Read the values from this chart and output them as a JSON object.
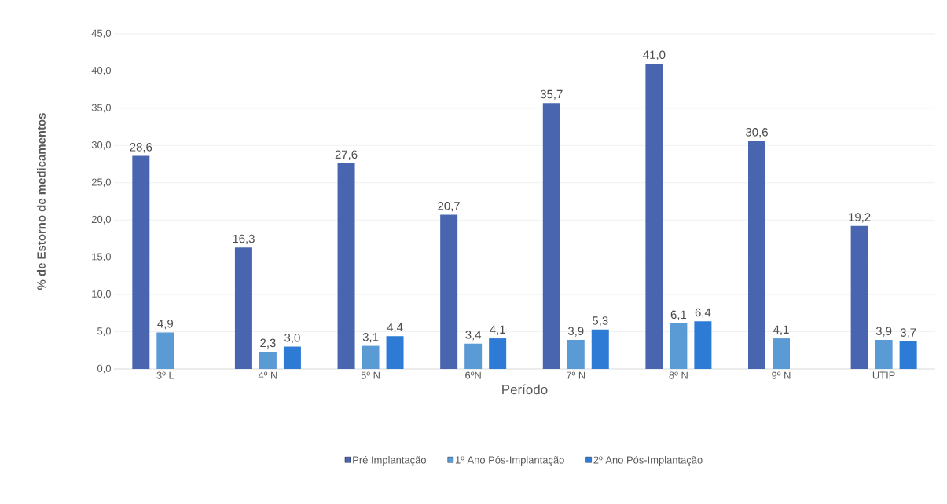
{
  "chart_data": {
    "type": "bar",
    "xlabel": "Período",
    "ylabel": "% de Estorno de medicamentos",
    "categories": [
      "3º L",
      "4º N",
      "5º N",
      "6ºN",
      "7º N",
      "8º N",
      "9º N",
      "UTIP"
    ],
    "series": [
      {
        "name": "Pré Implantação",
        "color": "#4a65b0",
        "values": [
          28.6,
          16.3,
          27.6,
          20.7,
          35.7,
          41.0,
          30.6,
          19.2
        ],
        "value_labels": [
          "28,6",
          "16,3",
          "27,6",
          "20,7",
          "35,7",
          "41,0",
          "30,6",
          "19,2"
        ]
      },
      {
        "name": "1º Ano Pós-Implantação",
        "color": "#5b9bd5",
        "values": [
          4.9,
          2.3,
          3.1,
          3.4,
          3.9,
          6.1,
          4.1,
          3.9
        ],
        "value_labels": [
          "4,9",
          "2,3",
          "3,1",
          "3,4",
          "3,9",
          "6,1",
          "4,1",
          "3,9"
        ]
      },
      {
        "name": "2º Ano Pós-Implantação",
        "color": "#2e7bd6",
        "values": [
          null,
          3.0,
          4.4,
          4.1,
          5.3,
          6.4,
          null,
          3.7
        ],
        "value_labels": [
          null,
          "3,0",
          "4,4",
          "4,1",
          "5,3",
          "6,4",
          null,
          "3,7"
        ]
      }
    ],
    "ylim": [
      0,
      45
    ],
    "yticks": [
      {
        "value": 0,
        "label": "0,0"
      },
      {
        "value": 5,
        "label": "5,0"
      },
      {
        "value": 10,
        "label": "10,0"
      },
      {
        "value": 15,
        "label": "15,0"
      },
      {
        "value": 20,
        "label": "20,0"
      },
      {
        "value": 25,
        "label": "25,0"
      },
      {
        "value": 30,
        "label": "30,0"
      },
      {
        "value": 35,
        "label": "35,0"
      },
      {
        "value": 40,
        "label": "40,0"
      },
      {
        "value": 45,
        "label": "45,0"
      }
    ],
    "grid": "y",
    "legend": "bottom"
  }
}
